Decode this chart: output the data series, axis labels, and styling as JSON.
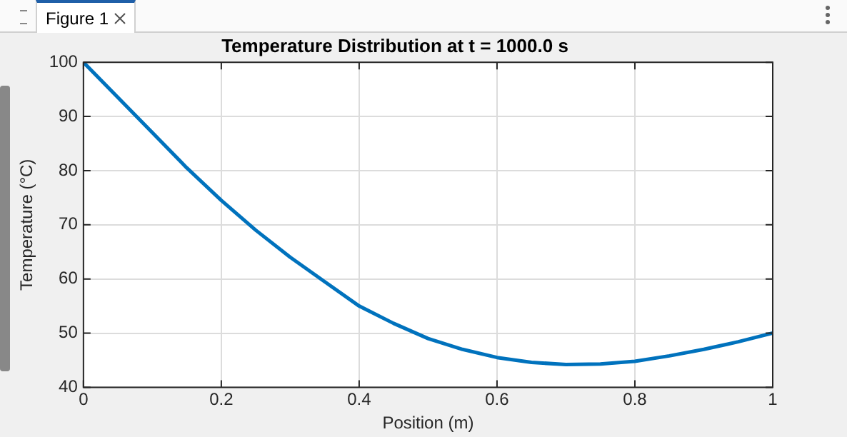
{
  "chart_data": {
    "type": "line",
    "title": "Temperature Distribution at t = 1000.0 s",
    "xlabel": "Position (m)",
    "ylabel": "Temperature (°C)",
    "annotations": [
      "Figure 1"
    ],
    "x": [
      0,
      0.05,
      0.1,
      0.15,
      0.2,
      0.25,
      0.3,
      0.35,
      0.4,
      0.45,
      0.5,
      0.55,
      0.6,
      0.65,
      0.7,
      0.75,
      0.8,
      0.85,
      0.9,
      0.95,
      1
    ],
    "series": [
      {
        "color": "#0072bd",
        "values": [
          100,
          93.5,
          87,
          80.5,
          74.5,
          69,
          64,
          59.5,
          55,
          51.8,
          49,
          47,
          45.5,
          44.6,
          44.2,
          44.3,
          44.8,
          45.8,
          47,
          48.4,
          50
        ]
      }
    ],
    "xlim": [
      0,
      1
    ],
    "xticks": [
      0,
      0.2,
      0.4,
      0.6,
      0.8,
      1
    ],
    "ylim": [
      40,
      100
    ],
    "yticks": [
      40,
      50,
      60,
      70,
      80,
      90,
      100
    ],
    "grid": true,
    "legend": false,
    "marker": "none",
    "line_style": "solid"
  }
}
